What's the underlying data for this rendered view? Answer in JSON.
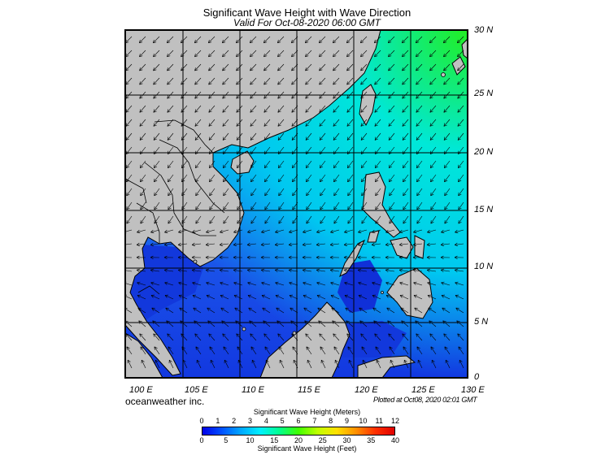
{
  "title": "Significant Wave Height with Wave Direction",
  "subtitle": "Valid For Oct-08-2020 06:00 GMT",
  "credit": "oceanweather inc.",
  "plotted": "Plotted at Oct08, 2020 02:01 GMT",
  "map": {
    "lon_range": [
      100,
      130
    ],
    "lat_range": [
      0,
      30
    ],
    "lon_labels": [
      "100 E",
      "105 E",
      "110 E",
      "115 E",
      "120 E",
      "125 E",
      "130 E"
    ],
    "lat_labels": [
      "30 N",
      "25 N",
      "20 N",
      "15 N",
      "10 N",
      "5 N",
      "0"
    ],
    "colors": {
      "land": "#c0c0c0",
      "deep_blue": "#0a2fd8",
      "blue": "#1f5ef0",
      "cyan": "#00e6f5",
      "green": "#22ee22",
      "grid": "#000000"
    }
  },
  "colorbar": {
    "meters_title": "Significant Wave Height (Meters)",
    "feet_title": "Significant Wave Height (Feet)",
    "meters_ticks": [
      "0",
      "1",
      "2",
      "3",
      "4",
      "5",
      "6",
      "7",
      "8",
      "9",
      "10",
      "11",
      "12"
    ],
    "feet_ticks": [
      "0",
      "5",
      "10",
      "15",
      "20",
      "25",
      "30",
      "35",
      "40"
    ],
    "colors": [
      "#0000e8",
      "#0050ff",
      "#00a8ff",
      "#00f0ff",
      "#00ff90",
      "#40ff00",
      "#c0ff00",
      "#ffe000",
      "#ff9000",
      "#ff3000",
      "#e00000"
    ]
  }
}
